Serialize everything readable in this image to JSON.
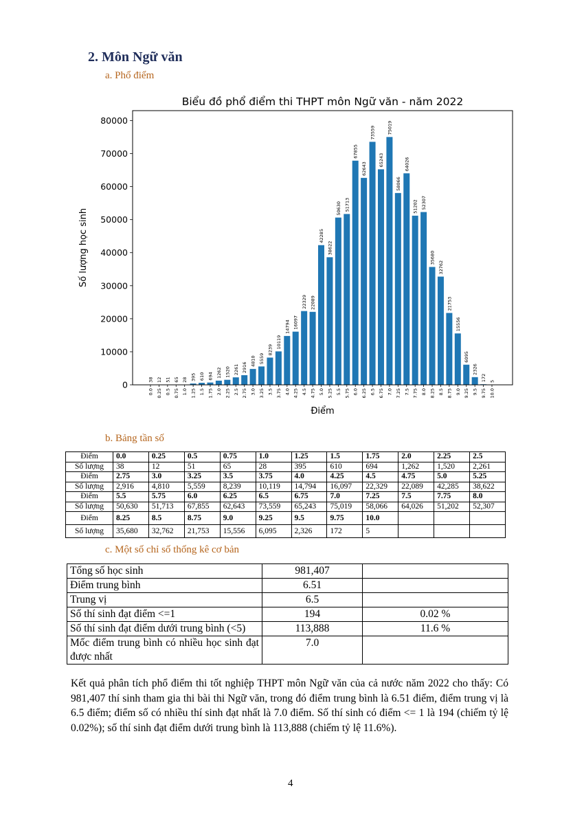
{
  "section_title": "2. Môn Ngữ văn",
  "sub_a": "a.   Phổ điểm",
  "sub_b": "b.   Bảng tần số",
  "sub_c": "c.   Một số chỉ số thống kê cơ bản",
  "chart_data": {
    "type": "bar",
    "title": "Biểu đồ phổ điểm thi THPT môn Ngữ văn - năm 2022",
    "xlabel": "Điểm",
    "ylabel": "Số lượng học sinh",
    "ylim": [
      0,
      83000
    ],
    "yticks": [
      "0",
      "10000",
      "20000",
      "30000",
      "40000",
      "50000",
      "60000",
      "70000",
      "80000"
    ],
    "color": "#1f77b4",
    "categories": [
      "0.0",
      "0.25",
      "0.5",
      "0.75",
      "1.0",
      "1.25",
      "1.5",
      "1.75",
      "2.0",
      "2.25",
      "2.5",
      "2.75",
      "3.0",
      "3.25",
      "3.5",
      "3.75",
      "4.0",
      "4.25",
      "4.5",
      "4.75",
      "5.0",
      "5.25",
      "5.5",
      "5.75",
      "6.0",
      "6.25",
      "6.5",
      "6.75",
      "7.0",
      "7.25",
      "7.5",
      "7.75",
      "8.0",
      "8.25",
      "8.5",
      "8.75",
      "9.0",
      "9.25",
      "9.5",
      "9.75",
      "10.0"
    ],
    "values": [
      38,
      12,
      51,
      65,
      28,
      395,
      610,
      694,
      1262,
      1520,
      2261,
      2916,
      4810,
      5559,
      8239,
      10119,
      14794,
      16097,
      22329,
      22089,
      42285,
      38622,
      50630,
      51713,
      67855,
      62643,
      73559,
      65243,
      75019,
      58066,
      64026,
      51202,
      52307,
      35680,
      32762,
      21753,
      15556,
      6095,
      2326,
      172,
      5
    ]
  },
  "freq_table": {
    "row_label_score": "Điểm",
    "row_label_count": "Số lượng",
    "blocks": [
      {
        "scores": [
          "0.0",
          "0.25",
          "0.5",
          "0.75",
          "1.0",
          "1.25",
          "1.5",
          "1.75",
          "2.0",
          "2.25",
          "2.5"
        ],
        "counts": [
          "38",
          "12",
          "51",
          "65",
          "28",
          "395",
          "610",
          "694",
          "1,262",
          "1,520",
          "2,261"
        ]
      },
      {
        "scores": [
          "2.75",
          "3.0",
          "3.25",
          "3.5",
          "3.75",
          "4.0",
          "4.25",
          "4.5",
          "4.75",
          "5.0",
          "5.25"
        ],
        "counts": [
          "2,916",
          "4,810",
          "5,559",
          "8,239",
          "10,119",
          "14,794",
          "16,097",
          "22,329",
          "22,089",
          "42,285",
          "38,622"
        ]
      },
      {
        "scores": [
          "5.5",
          "5.75",
          "6.0",
          "6.25",
          "6.5",
          "6.75",
          "7.0",
          "7.25",
          "7.5",
          "7.75",
          "8.0"
        ],
        "counts": [
          "50,630",
          "51,713",
          "67,855",
          "62,643",
          "73,559",
          "65,243",
          "75,019",
          "58,066",
          "64,026",
          "51,202",
          "52,307"
        ]
      },
      {
        "scores": [
          "8.25",
          "8.5",
          "8.75",
          "9.0",
          "9.25",
          "9.5",
          "9.75",
          "10.0",
          "",
          "",
          ""
        ],
        "counts": [
          "35,680",
          "32,762",
          "21,753",
          "15,556",
          "6,095",
          "2,326",
          "172",
          "5",
          "",
          "",
          ""
        ]
      }
    ]
  },
  "stats_table": [
    {
      "label": "Tổng số học sinh",
      "value": "981,407",
      "pct": ""
    },
    {
      "label": "Điểm trung bình",
      "value": "6.51",
      "pct": ""
    },
    {
      "label": "Trung vị",
      "value": "6.5",
      "pct": ""
    },
    {
      "label": "Số thí sinh đạt điểm <=1",
      "value": "194",
      "pct": "0.02 %"
    },
    {
      "label": "Số thí sinh đạt điểm dưới trung bình (<5)",
      "value": "113,888",
      "pct": "11.6 %"
    },
    {
      "label": "Mốc điểm trung bình có nhiều học sinh đạt được nhất",
      "value": "7.0",
      "pct": ""
    }
  ],
  "paragraph": "Kết quả phân tích phổ điểm thi tốt nghiệp THPT môn Ngữ văn của cả nước năm 2022 cho thấy: Có 981,407 thí sinh tham gia thi bài thi Ngữ văn, trong đó điểm trung bình là 6.51 điểm, điểm trung vị là 6.5 điểm; điểm số có nhiều thí sinh đạt nhất là 7.0 điểm. Số thí sinh có điểm <= 1 là 194 (chiếm tỷ lệ 0.02%); số thí sinh đạt điểm dưới trung bình là 113,888 (chiếm tỷ lệ 11.6%).",
  "page_number": "4"
}
